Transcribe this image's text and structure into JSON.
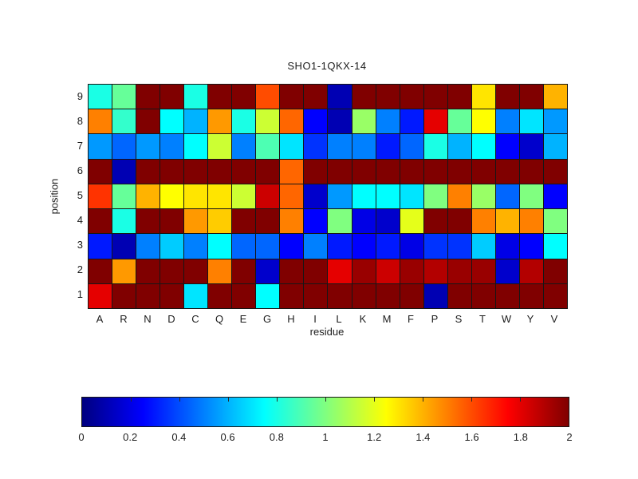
{
  "chart_data": {
    "type": "heatmap",
    "title": "SHO1-1QKX-14",
    "xlabel": "residue",
    "ylabel": "position",
    "x_categories": [
      "A",
      "R",
      "N",
      "D",
      "C",
      "Q",
      "E",
      "G",
      "H",
      "I",
      "L",
      "K",
      "M",
      "F",
      "P",
      "S",
      "T",
      "W",
      "Y",
      "V"
    ],
    "y_categories": [
      "9",
      "8",
      "7",
      "6",
      "5",
      "4",
      "3",
      "2",
      "1"
    ],
    "colormap": "jet",
    "value_range": [
      0,
      2
    ],
    "grid": true,
    "legend_position": "colorbar-bottom",
    "colorbar_ticks": [
      "0",
      "0.2",
      "0.4",
      "0.6",
      "0.8",
      "1",
      "1.2",
      "1.4",
      "1.6",
      "1.8",
      "2"
    ],
    "colorbar_tick_values": [
      0,
      0.2,
      0.4,
      0.6,
      0.8,
      1,
      1.2,
      1.4,
      1.6,
      1.8,
      2
    ],
    "matrix": [
      [
        0.8,
        0.95,
        2,
        2,
        0.8,
        2,
        2,
        1.6,
        2,
        2,
        0.1,
        2,
        2,
        2,
        2,
        2,
        1.3,
        2,
        2,
        1.4
      ],
      [
        1.5,
        0.85,
        2,
        0.75,
        0.6,
        1.45,
        0.8,
        1.15,
        1.55,
        0.25,
        0.1,
        1.05,
        0.5,
        0.3,
        1.8,
        0.95,
        1.25,
        0.5,
        0.7,
        0.55
      ],
      [
        0.55,
        0.45,
        0.55,
        0.5,
        0.75,
        1.15,
        0.5,
        0.9,
        0.7,
        0.35,
        0.5,
        0.5,
        0.3,
        0.45,
        0.8,
        0.6,
        0.75,
        0.25,
        0.15,
        0.6
      ],
      [
        2,
        0.1,
        2,
        2,
        2,
        2,
        2,
        2,
        1.55,
        2,
        2,
        2,
        2,
        2,
        2,
        2,
        2,
        2,
        2,
        2
      ],
      [
        1.65,
        0.95,
        1.4,
        1.25,
        1.3,
        1.3,
        1.15,
        1.85,
        1.55,
        0.15,
        0.55,
        0.75,
        0.75,
        0.7,
        1.0,
        1.5,
        1.05,
        0.45,
        1.0,
        0.25
      ],
      [
        2,
        0.8,
        2,
        2,
        1.45,
        1.35,
        2,
        2,
        1.5,
        0.25,
        1.0,
        0.2,
        0.15,
        1.2,
        2,
        2,
        1.5,
        1.4,
        1.5,
        1.0
      ],
      [
        0.3,
        0.1,
        0.5,
        0.65,
        0.5,
        0.75,
        0.45,
        0.45,
        0.25,
        0.5,
        0.3,
        0.25,
        0.3,
        0.2,
        0.35,
        0.35,
        0.65,
        0.2,
        0.25,
        0.75
      ],
      [
        2,
        1.45,
        2,
        2,
        2,
        1.5,
        2,
        0.15,
        2,
        2,
        1.8,
        1.95,
        1.85,
        1.95,
        1.9,
        1.95,
        1.95,
        0.15,
        1.9,
        2
      ],
      [
        1.8,
        2,
        2,
        2,
        0.7,
        2,
        2,
        0.75,
        2,
        2,
        2,
        2,
        2,
        2,
        0.1,
        2,
        2,
        2,
        2,
        2
      ]
    ]
  }
}
